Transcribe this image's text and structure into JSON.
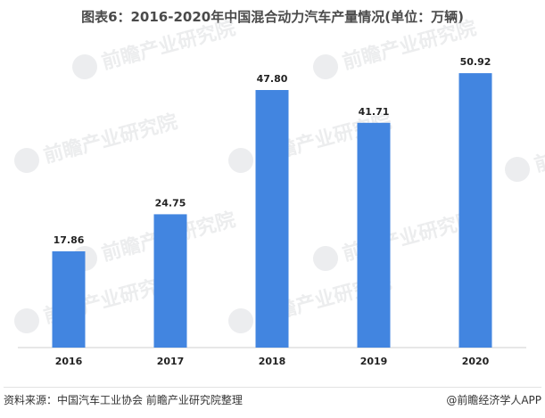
{
  "title": "图表6：2016-2020年中国混合动力汽车产量情况(单位：万辆)",
  "footer": {
    "source": "资料来源：中国汽车工业协会 前瞻产业研究院整理",
    "brand": "@前瞻经济学人APP"
  },
  "watermark": {
    "text": "前瞻产业研究院"
  },
  "chart_data": {
    "type": "bar",
    "categories": [
      "2016",
      "2017",
      "2018",
      "2019",
      "2020"
    ],
    "values": [
      17.86,
      24.75,
      47.8,
      41.71,
      50.92
    ],
    "value_labels": [
      "17.86",
      "24.75",
      "47.80",
      "41.71",
      "50.92"
    ],
    "ylim": [
      0,
      56.4
    ],
    "grid": false,
    "bar_color": "#4285e0"
  }
}
